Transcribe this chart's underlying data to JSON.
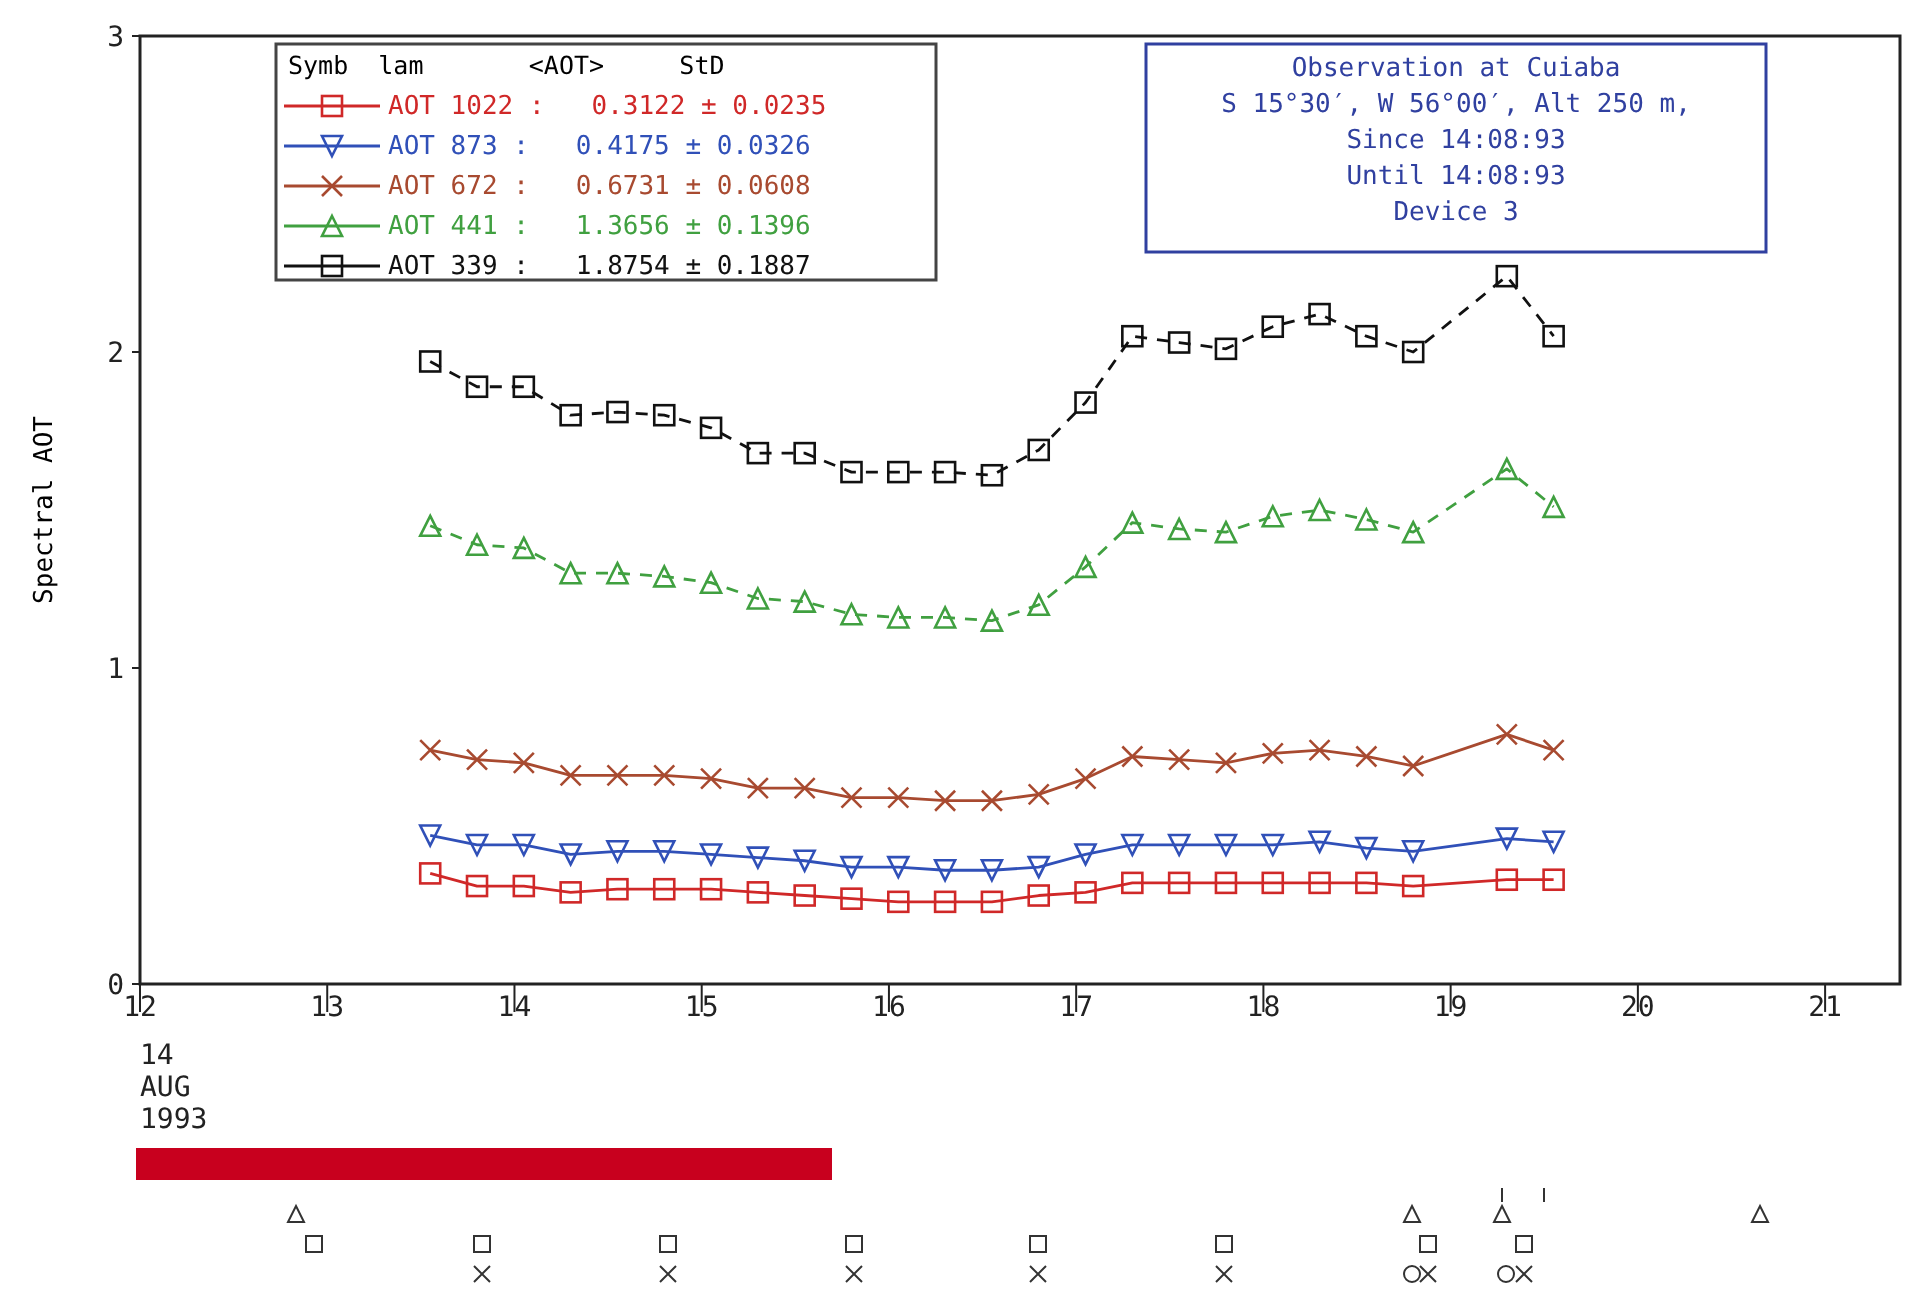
{
  "chart_data": {
    "type": "line",
    "ylabel": "Spectral AOT",
    "xlabel": "14 AUG 1993",
    "legend_title": "Symb  lam       <AOT>     StD",
    "legend": "top left",
    "x": [
      13.55,
      13.8,
      14.05,
      14.3,
      14.55,
      14.8,
      15.05,
      15.3,
      15.55,
      15.8,
      16.05,
      16.3,
      16.55,
      16.8,
      17.05,
      17.3,
      17.55,
      17.8,
      18.05,
      18.3,
      18.55,
      18.8,
      19.3,
      19.55
    ],
    "xlim": [
      12,
      21.4
    ],
    "xticks": [
      12,
      13,
      14,
      15,
      16,
      17,
      18,
      19,
      20,
      21
    ],
    "ylim": [
      0,
      3
    ],
    "yticks": [
      0,
      1,
      2,
      3
    ],
    "grid": false,
    "series": [
      {
        "name": "AOT 1022 :   0.3122 ± 0.0235",
        "color": "#d02828",
        "marker": "square",
        "line_style": "solid",
        "values": [
          0.35,
          0.31,
          0.31,
          0.29,
          0.3,
          0.3,
          0.3,
          0.29,
          0.28,
          0.27,
          0.26,
          0.26,
          0.26,
          0.28,
          0.29,
          0.32,
          0.32,
          0.32,
          0.32,
          0.32,
          0.32,
          0.31,
          0.33,
          0.33
        ]
      },
      {
        "name": "AOT 873 :   0.4175 ± 0.0326",
        "color": "#3050b8",
        "marker": "triangle-down",
        "line_style": "solid",
        "values": [
          0.47,
          0.44,
          0.44,
          0.41,
          0.42,
          0.42,
          0.41,
          0.4,
          0.39,
          0.37,
          0.37,
          0.36,
          0.36,
          0.37,
          0.41,
          0.44,
          0.44,
          0.44,
          0.44,
          0.45,
          0.43,
          0.42,
          0.46,
          0.45
        ]
      },
      {
        "name": "AOT 672 :   0.6731 ± 0.0608",
        "color": "#a84a30",
        "marker": "cross",
        "line_style": "solid",
        "values": [
          0.74,
          0.71,
          0.7,
          0.66,
          0.66,
          0.66,
          0.65,
          0.62,
          0.62,
          0.59,
          0.59,
          0.58,
          0.58,
          0.6,
          0.65,
          0.72,
          0.71,
          0.7,
          0.73,
          0.74,
          0.72,
          0.69,
          0.79,
          0.74
        ]
      },
      {
        "name": "AOT 441 :   1.3656 ± 0.1396",
        "color": "#40a040",
        "marker": "triangle",
        "line_style": "dashed",
        "values": [
          1.45,
          1.39,
          1.38,
          1.3,
          1.3,
          1.29,
          1.27,
          1.22,
          1.21,
          1.17,
          1.16,
          1.16,
          1.15,
          1.2,
          1.32,
          1.46,
          1.44,
          1.43,
          1.48,
          1.5,
          1.47,
          1.43,
          1.63,
          1.51
        ]
      },
      {
        "name": "AOT 339 :   1.8754 ± 0.1887",
        "color": "#111111",
        "marker": "square",
        "line_style": "dashed",
        "values": [
          1.97,
          1.89,
          1.89,
          1.8,
          1.81,
          1.8,
          1.76,
          1.68,
          1.68,
          1.62,
          1.62,
          1.62,
          1.61,
          1.69,
          1.84,
          2.05,
          2.03,
          2.01,
          2.08,
          2.12,
          2.05,
          2.0,
          2.24,
          2.05
        ]
      }
    ],
    "annotations": [
      "Observation at Cuiaba",
      "S 15°30′, W 56°00′, Alt 250 m,",
      "Since 14:08:93",
      "Until 14:08:93",
      "Device 3"
    ]
  }
}
